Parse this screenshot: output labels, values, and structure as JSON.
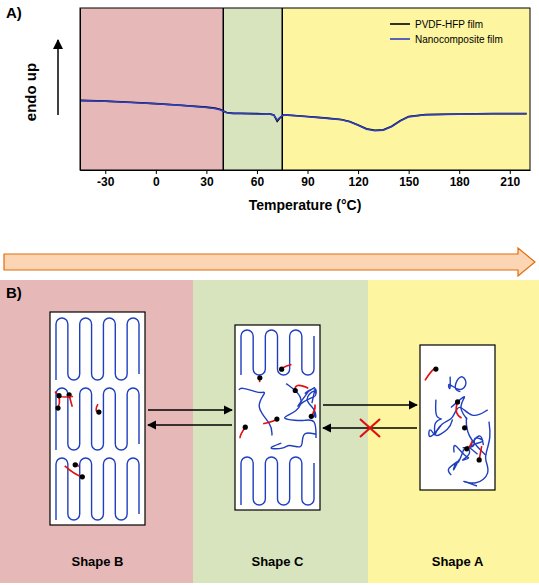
{
  "chart_data": {
    "type": "line",
    "panel_label": "A)",
    "x_label": "Temperature (°C)",
    "y_label": "endo up",
    "x": [
      -45,
      -30,
      -15,
      0,
      15,
      30,
      35,
      38,
      42,
      46,
      50,
      60,
      65,
      68,
      70,
      72,
      74,
      76,
      80,
      90,
      100,
      110,
      115,
      120,
      125,
      130,
      135,
      140,
      145,
      150,
      160,
      180,
      200,
      220
    ],
    "series": [
      {
        "name": "PVDF-HFP film",
        "color": "#000000",
        "values": [
          4.3,
          4.25,
          4.18,
          4.1,
          4.0,
          3.88,
          3.82,
          3.75,
          3.55,
          3.5,
          3.5,
          3.48,
          3.46,
          3.45,
          3.4,
          3.0,
          3.25,
          3.4,
          3.38,
          3.3,
          3.22,
          3.12,
          3.0,
          2.78,
          2.55,
          2.45,
          2.48,
          2.7,
          3.05,
          3.3,
          3.42,
          3.46,
          3.48,
          3.48
        ]
      },
      {
        "name": "Nanocomposite film",
        "color": "#2f3fbf",
        "values": [
          4.28,
          4.24,
          4.17,
          4.09,
          3.99,
          3.86,
          3.8,
          3.72,
          3.53,
          3.48,
          3.48,
          3.46,
          3.45,
          3.44,
          3.4,
          3.08,
          3.28,
          3.4,
          3.37,
          3.29,
          3.2,
          3.1,
          2.98,
          2.76,
          2.52,
          2.42,
          2.46,
          2.68,
          3.02,
          3.28,
          3.41,
          3.45,
          3.47,
          3.47
        ]
      }
    ],
    "xlim": [
      -45,
      222
    ],
    "xticks": [
      -30,
      0,
      30,
      60,
      90,
      120,
      150,
      180,
      210
    ],
    "ylim": [
      0,
      10
    ],
    "tick_labels": "x",
    "legend": "upper right",
    "regions": [
      {
        "from": -45,
        "to": 40,
        "color": "#e6b9b8"
      },
      {
        "from": 40,
        "to": 75,
        "color": "#d7e4bd"
      },
      {
        "from": 75,
        "to": 222,
        "color": "#fdf59f"
      }
    ]
  },
  "diagram": {
    "panel_label": "B)",
    "states": [
      {
        "label": "Shape B"
      },
      {
        "label": "Shape C"
      },
      {
        "label": "Shape A"
      }
    ]
  }
}
